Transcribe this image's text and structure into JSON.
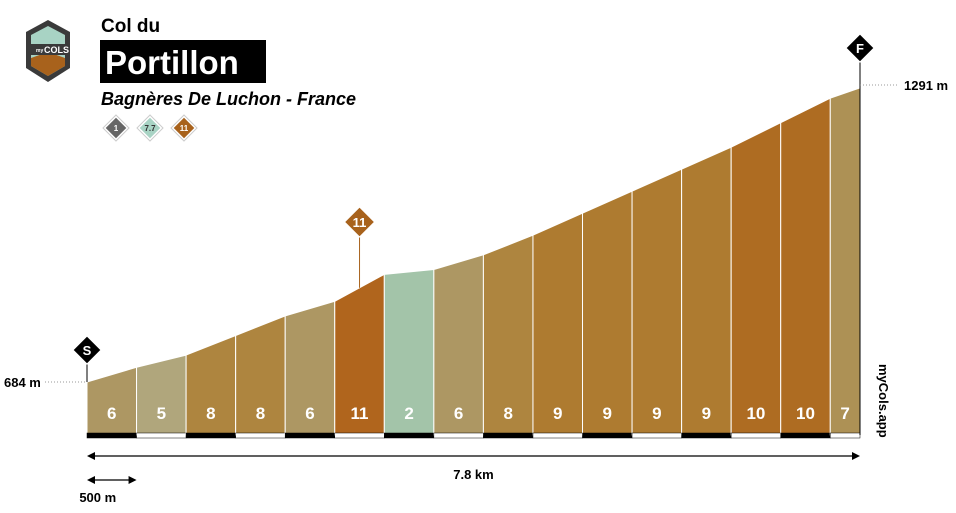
{
  "chart_data": {
    "type": "profile",
    "logo_small": "my",
    "logo": "COLS",
    "pretitle": "Col du",
    "title": "Portillon",
    "subtitle": "Bagnères De Luchon - France",
    "badges": [
      {
        "value": 1,
        "color": "#666666"
      },
      {
        "value": 7.7,
        "color": "#a8d3c4"
      },
      {
        "value": 11,
        "color": "#a8621c"
      }
    ],
    "start_marker": "S",
    "finish_marker": "F",
    "max_marker": 11,
    "start_elevation": {
      "value": 684,
      "label": "684 m"
    },
    "end_elevation": {
      "value": 1291,
      "label": "1291 m"
    },
    "total_distance": {
      "value": 7.8,
      "label": "7.8 km"
    },
    "scale": {
      "value": 0.5,
      "label": "500 m"
    },
    "watermark": "myCols.app",
    "gradients": [
      6,
      5,
      8,
      8,
      6,
      11,
      2,
      6,
      8,
      9,
      9,
      9,
      9,
      10,
      10,
      7
    ],
    "lengths": [
      0.5,
      0.5,
      0.5,
      0.5,
      0.5,
      0.5,
      0.5,
      0.5,
      0.5,
      0.5,
      0.5,
      0.5,
      0.5,
      0.5,
      0.5,
      0.3
    ],
    "colors": [
      "#ad9763",
      "#b0a67c",
      "#ae853f",
      "#ae853f",
      "#ad9763",
      "#b0651d",
      "#a3c4a9",
      "#ad9763",
      "#ae853f",
      "#ae7b30",
      "#ae7b30",
      "#ae7b30",
      "#ae7b30",
      "#ae6c22",
      "#ae6c22",
      "#ad9155"
    ]
  }
}
